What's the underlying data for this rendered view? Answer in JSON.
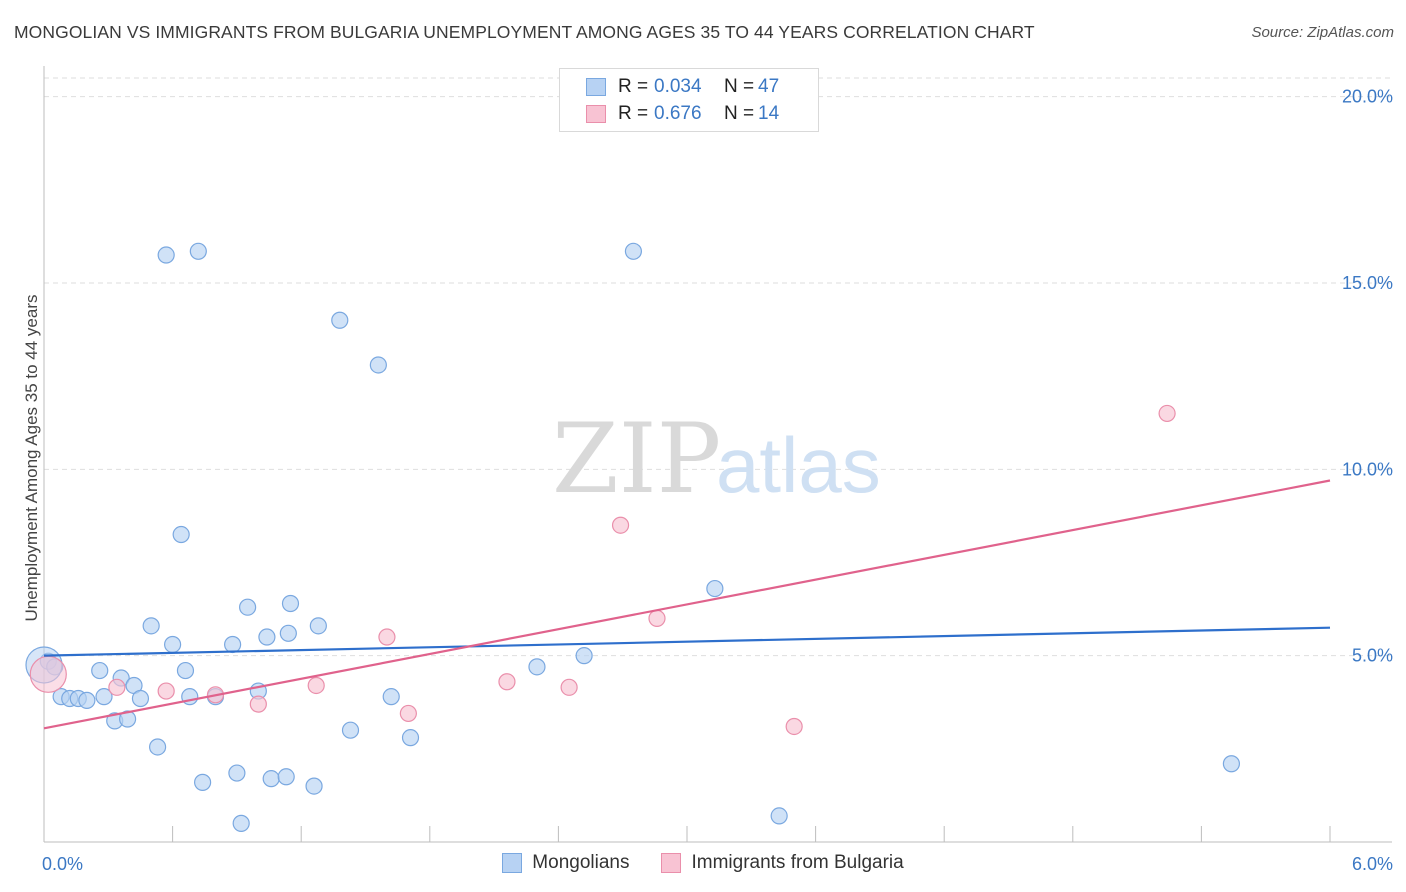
{
  "header": {
    "title": "MONGOLIAN VS IMMIGRANTS FROM BULGARIA UNEMPLOYMENT AMONG AGES 35 TO 44 YEARS CORRELATION CHART",
    "source": "Source: ZipAtlas.com"
  },
  "watermark": {
    "zip": "ZIP",
    "atlas": "atlas"
  },
  "legend": {
    "rows": [
      {
        "r_label": "R =",
        "r_value": "0.034",
        "n_label": "N =",
        "n_value": "47"
      },
      {
        "r_label": "R =",
        "r_value": "0.676",
        "n_label": "N =",
        "n_value": "14"
      }
    ]
  },
  "bottom_legend": {
    "items": [
      {
        "label": "Mongolians"
      },
      {
        "label": "Immigrants from Bulgaria"
      }
    ]
  },
  "colors": {
    "blue_fill": "#b7d2f3",
    "blue_stroke": "#7aa8e0",
    "blue_line": "#2e6fcc",
    "pink_fill": "#f8c3d3",
    "pink_stroke": "#ea8fab",
    "pink_line": "#e0628c",
    "grid": "#dedede",
    "axis_text": "#3b78c4"
  },
  "chart_data": {
    "type": "scatter",
    "title": "MONGOLIAN VS IMMIGRANTS FROM BULGARIA UNEMPLOYMENT AMONG AGES 35 TO 44 YEARS CORRELATION CHART",
    "xlabel": "",
    "ylabel": "Unemployment Among Ages 35 to 44 years",
    "xlim": [
      0,
      6
    ],
    "ylim": [
      0,
      20.5
    ],
    "x_tick_labels": [
      "0.0%",
      "6.0%"
    ],
    "y_ticks": [
      5,
      10,
      15,
      20
    ],
    "y_tick_labels": [
      "5.0%",
      "10.0%",
      "15.0%",
      "20.0%"
    ],
    "grid": true,
    "legend_position": "top-center",
    "series": [
      {
        "name": "Mongolians",
        "R": 0.034,
        "N": 47,
        "trend": [
          [
            0,
            5.0
          ],
          [
            6,
            5.75
          ]
        ],
        "points": [
          [
            0.02,
            4.85
          ],
          [
            0.05,
            4.7
          ],
          [
            0.08,
            3.9
          ],
          [
            0.12,
            3.85
          ],
          [
            0.16,
            3.85
          ],
          [
            0.2,
            3.8
          ],
          [
            0.26,
            4.6
          ],
          [
            0.28,
            3.9
          ],
          [
            0.33,
            3.25
          ],
          [
            0.36,
            4.4
          ],
          [
            0.39,
            3.3
          ],
          [
            0.42,
            4.2
          ],
          [
            0.45,
            3.85
          ],
          [
            0.5,
            5.8
          ],
          [
            0.53,
            2.55
          ],
          [
            0.57,
            15.75
          ],
          [
            0.6,
            5.3
          ],
          [
            0.64,
            8.25
          ],
          [
            0.66,
            4.6
          ],
          [
            0.68,
            3.9
          ],
          [
            0.72,
            15.85
          ],
          [
            0.74,
            1.6
          ],
          [
            0.8,
            3.9
          ],
          [
            0.88,
            5.3
          ],
          [
            0.9,
            1.85
          ],
          [
            0.92,
            0.5
          ],
          [
            0.95,
            6.3
          ],
          [
            1.0,
            4.05
          ],
          [
            1.04,
            5.5
          ],
          [
            1.06,
            1.7
          ],
          [
            1.14,
            5.6
          ],
          [
            1.15,
            6.4
          ],
          [
            1.13,
            1.75
          ],
          [
            1.26,
            1.5
          ],
          [
            1.28,
            5.8
          ],
          [
            1.38,
            14.0
          ],
          [
            1.43,
            3.0
          ],
          [
            1.56,
            12.8
          ],
          [
            1.62,
            3.9
          ],
          [
            1.71,
            2.8
          ],
          [
            2.3,
            4.7
          ],
          [
            2.52,
            5.0
          ],
          [
            2.75,
            15.85
          ],
          [
            3.13,
            6.8
          ],
          [
            3.43,
            0.7
          ],
          [
            5.54,
            2.1
          ],
          [
            0.0,
            4.75
          ]
        ]
      },
      {
        "name": "Immigrants from Bulgaria",
        "R": 0.676,
        "N": 14,
        "trend": [
          [
            0,
            3.05
          ],
          [
            6,
            9.7
          ]
        ],
        "points": [
          [
            0.02,
            4.5
          ],
          [
            0.34,
            4.15
          ],
          [
            0.57,
            4.05
          ],
          [
            0.8,
            3.95
          ],
          [
            1.0,
            3.7
          ],
          [
            1.27,
            4.2
          ],
          [
            1.6,
            5.5
          ],
          [
            1.7,
            3.45
          ],
          [
            2.16,
            4.3
          ],
          [
            2.45,
            4.15
          ],
          [
            2.69,
            8.5
          ],
          [
            2.86,
            6.0
          ],
          [
            3.5,
            3.1
          ],
          [
            5.24,
            11.5
          ]
        ]
      }
    ]
  }
}
